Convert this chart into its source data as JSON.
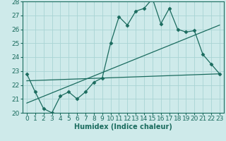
{
  "xlabel": "Humidex (Indice chaleur)",
  "bg_color": "#ceeaea",
  "grid_color": "#a8d4d4",
  "line_color": "#1a6b5e",
  "xlim": [
    -0.5,
    23.5
  ],
  "ylim": [
    20,
    28
  ],
  "yticks": [
    20,
    21,
    22,
    23,
    24,
    25,
    26,
    27,
    28
  ],
  "xticks": [
    0,
    1,
    2,
    3,
    4,
    5,
    6,
    7,
    8,
    9,
    10,
    11,
    12,
    13,
    14,
    15,
    16,
    17,
    18,
    19,
    20,
    21,
    22,
    23
  ],
  "line1_x": [
    0,
    1,
    2,
    3,
    4,
    5,
    6,
    7,
    8,
    9,
    10,
    11,
    12,
    13,
    14,
    15,
    16,
    17,
    18,
    19,
    20,
    21,
    22,
    23
  ],
  "line1_y": [
    22.8,
    21.5,
    20.3,
    20.0,
    21.2,
    21.5,
    21.0,
    21.5,
    22.2,
    22.5,
    25.0,
    26.9,
    26.3,
    27.3,
    27.5,
    28.2,
    26.4,
    27.5,
    26.0,
    25.8,
    25.9,
    24.2,
    23.5,
    22.8
  ],
  "line2_x": [
    0,
    23
  ],
  "line2_y": [
    22.3,
    22.8
  ],
  "line3_x": [
    0,
    23
  ],
  "line3_y": [
    20.7,
    26.3
  ],
  "marker": "D",
  "markersize": 2.5,
  "linewidth": 0.9,
  "xlabel_fontsize": 7,
  "tick_fontsize": 6.5
}
